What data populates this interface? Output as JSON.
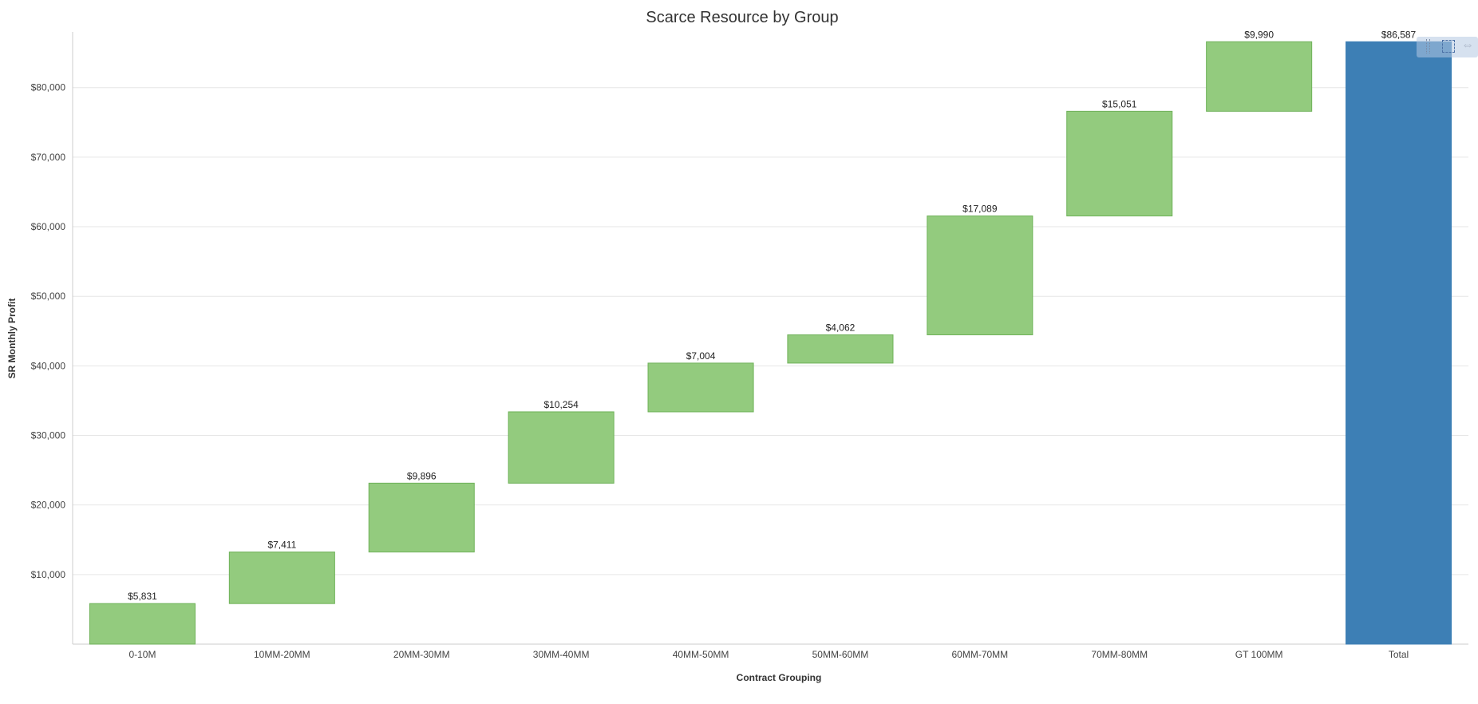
{
  "chart_data": {
    "type": "waterfall",
    "title": "Scarce Resource by Group",
    "xlabel": "Contract Grouping",
    "ylabel": "SR Monthly Profit",
    "ylim": [
      0,
      88000
    ],
    "yticks": [
      10000,
      20000,
      30000,
      40000,
      50000,
      60000,
      70000,
      80000
    ],
    "ytick_labels": [
      "$10,000",
      "$20,000",
      "$30,000",
      "$40,000",
      "$50,000",
      "$60,000",
      "$70,000",
      "$80,000"
    ],
    "grid": true,
    "categories": [
      "0-10M",
      "10MM-20MM",
      "20MM-30MM",
      "30MM-40MM",
      "40MM-50MM",
      "50MM-60MM",
      "60MM-70MM",
      "70MM-80MM",
      "GT 100MM",
      "Total"
    ],
    "values": [
      5831,
      7411,
      9896,
      10254,
      7004,
      4062,
      17089,
      15051,
      9990,
      86587
    ],
    "value_labels": [
      "$5,831",
      "$7,411",
      "$9,896",
      "$10,254",
      "$7,004",
      "$4,062",
      "$17,089",
      "$15,051",
      "$9,990",
      "$86,587"
    ],
    "is_total": [
      false,
      false,
      false,
      false,
      false,
      false,
      false,
      false,
      false,
      true
    ],
    "colors": {
      "increment": "#93cb7e",
      "increment_border": "#6fb259",
      "total": "#3d7fb5"
    }
  },
  "toolbar": {
    "icons": [
      "drag-handle-icon",
      "box-select-icon",
      "pan-icon"
    ],
    "pan_glyph": "⇔"
  }
}
